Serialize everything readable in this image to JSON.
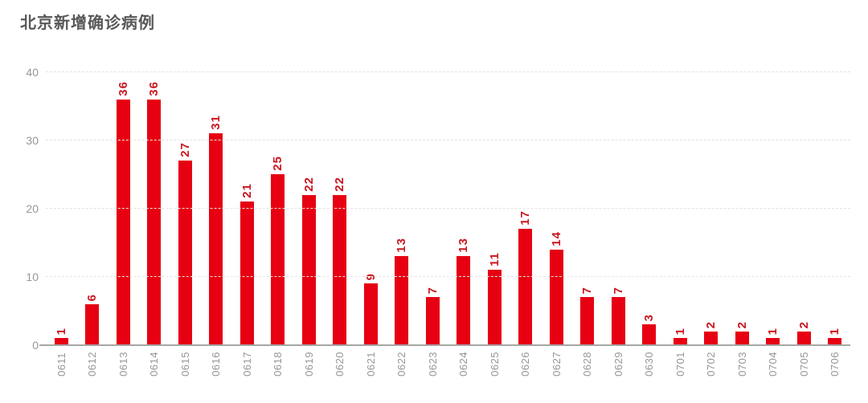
{
  "page": {
    "title": "北京新增确诊病例"
  },
  "chart_data": {
    "type": "bar",
    "title": "北京新增确诊病例",
    "categories": [
      "0611",
      "0612",
      "0613",
      "0614",
      "0615",
      "0616",
      "0617",
      "0618",
      "0619",
      "0620",
      "0621",
      "0622",
      "0623",
      "0624",
      "0625",
      "0626",
      "0627",
      "0628",
      "0629",
      "0630",
      "0701",
      "0702",
      "0703",
      "0704",
      "0705",
      "0706"
    ],
    "values": [
      1,
      6,
      36,
      36,
      27,
      31,
      21,
      25,
      22,
      22,
      9,
      13,
      7,
      13,
      11,
      17,
      14,
      7,
      7,
      3,
      1,
      2,
      2,
      1,
      2,
      1
    ],
    "xlabel": "",
    "ylabel": "",
    "ylim": [
      0,
      40
    ],
    "yticks": [
      0,
      10,
      20,
      30,
      40
    ],
    "grid": "horizontal-dashed",
    "legend": "none",
    "value_labels": "above-bars-rotated-90",
    "tick_labels": "rotated-90",
    "colors": {
      "bar": "#e60012",
      "value_label": "#c9161f",
      "axis_text": "#969696",
      "title": "#585858",
      "gridline": "#e3e3e3",
      "baseline": "#a6a6a6"
    }
  }
}
